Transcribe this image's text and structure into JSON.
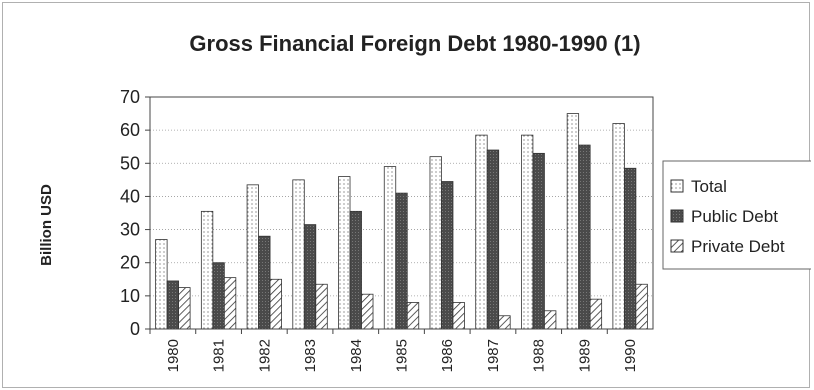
{
  "chart_data": {
    "type": "bar",
    "title": "Gross Financial Foreign Debt 1980-1990 (1)",
    "ylabel": "Billion USD",
    "xlabel": "",
    "ylim": [
      0,
      70
    ],
    "yticks": [
      "0",
      "10",
      "20",
      "30",
      "40",
      "50",
      "60",
      "70"
    ],
    "categories": [
      "1980",
      "1981",
      "1982",
      "1983",
      "1984",
      "1985",
      "1986",
      "1987",
      "1988",
      "1989",
      "1990"
    ],
    "series": [
      {
        "name": "Total",
        "values": [
          27,
          35.5,
          43.5,
          45,
          46,
          49,
          52,
          58.5,
          58.5,
          65,
          62
        ]
      },
      {
        "name": "Public Debt",
        "values": [
          14.5,
          20,
          28,
          31.5,
          35.5,
          41,
          44.5,
          54,
          53,
          55.5,
          48.5
        ]
      },
      {
        "name": "Private Debt",
        "values": [
          12.5,
          15.5,
          15,
          13.5,
          10.5,
          8,
          8,
          4,
          5.5,
          9,
          13.5
        ]
      }
    ],
    "grid": "horizontal",
    "legend_position": "right"
  }
}
